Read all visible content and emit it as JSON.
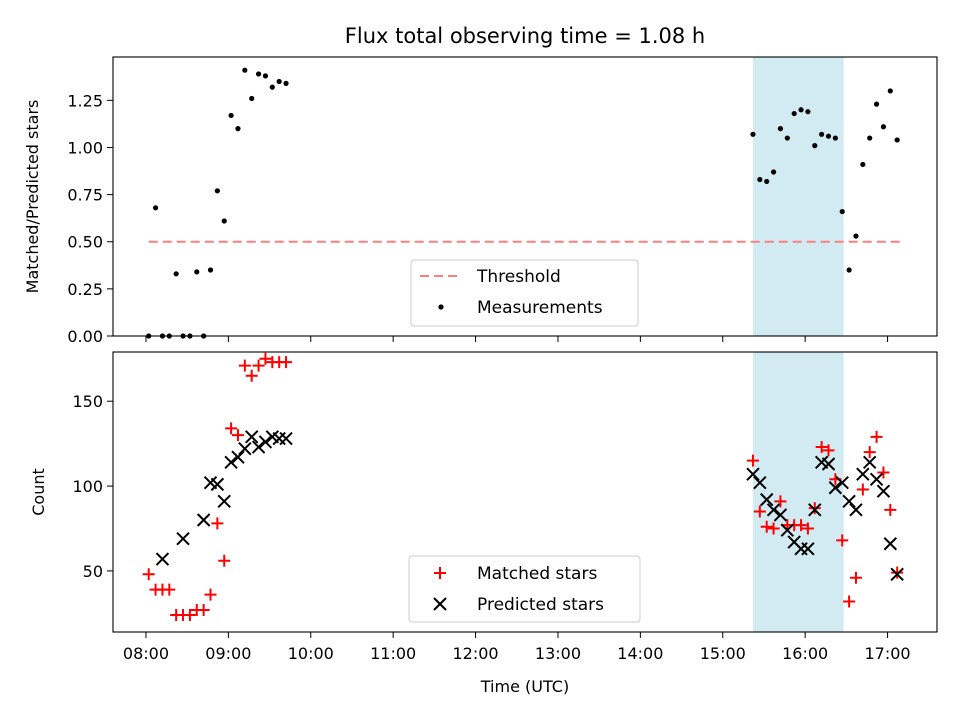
{
  "title": "Flux total observing time = 1.08 h",
  "colors": {
    "threshold": "#ff7f7f",
    "measurement": "#000000",
    "matched": "#ff0000",
    "predicted": "#000000",
    "shade": "#add8e6"
  },
  "chart_data": [
    {
      "type": "scatter",
      "ylabel": "Matched/Predicted stars",
      "xlim": [
        "07:36",
        "17:36"
      ],
      "ylim": [
        0,
        1.48
      ],
      "yticks": [
        0.0,
        0.25,
        0.5,
        0.75,
        1.0,
        1.25
      ],
      "ytick_labels": [
        "0.00",
        "0.25",
        "0.50",
        "0.75",
        "1.00",
        "1.25"
      ],
      "shaded_span": [
        "15:22",
        "16:28"
      ],
      "threshold": {
        "name": "Threshold",
        "y": 0.5,
        "x": [
          "08:02",
          "17:10"
        ]
      },
      "series": [
        {
          "name": "Measurements",
          "x": [
            "08:02",
            "08:07",
            "08:12",
            "08:17",
            "08:22",
            "08:27",
            "08:32",
            "08:37",
            "08:42",
            "08:47",
            "08:52",
            "08:57",
            "09:02",
            "09:07",
            "09:12",
            "09:17",
            "09:22",
            "09:27",
            "09:32",
            "09:37",
            "09:42",
            "15:22",
            "15:27",
            "15:32",
            "15:37",
            "15:42",
            "15:47",
            "15:52",
            "15:57",
            "16:02",
            "16:07",
            "16:12",
            "16:17",
            "16:22",
            "16:27",
            "16:32",
            "16:37",
            "16:42",
            "16:47",
            "16:52",
            "16:57",
            "17:02",
            "17:07"
          ],
          "y": [
            0.0,
            0.68,
            0.0,
            0.0,
            0.33,
            0.0,
            0.0,
            0.34,
            0.0,
            0.35,
            0.77,
            0.61,
            1.17,
            1.1,
            1.41,
            1.26,
            1.39,
            1.38,
            1.32,
            1.35,
            1.34,
            1.07,
            0.83,
            0.82,
            0.87,
            1.1,
            1.05,
            1.18,
            1.2,
            1.19,
            1.01,
            1.07,
            1.06,
            1.05,
            0.66,
            0.35,
            0.53,
            0.91,
            1.05,
            1.23,
            1.11,
            1.3,
            1.04
          ]
        }
      ],
      "legend": {
        "location": "lower center",
        "entries": [
          "Threshold",
          "Measurements"
        ]
      }
    },
    {
      "type": "scatter",
      "xlabel": "Time (UTC)",
      "ylabel": "Count",
      "xlim": [
        "07:36",
        "17:36"
      ],
      "ylim": [
        14,
        179
      ],
      "yticks": [
        50,
        100,
        150
      ],
      "xticks": [
        "08:00",
        "09:00",
        "10:00",
        "11:00",
        "12:00",
        "13:00",
        "14:00",
        "15:00",
        "16:00",
        "17:00"
      ],
      "shaded_span": [
        "15:22",
        "16:28"
      ],
      "series": [
        {
          "name": "Matched stars",
          "marker": "+",
          "x": [
            "08:02",
            "08:07",
            "08:12",
            "08:17",
            "08:22",
            "08:27",
            "08:32",
            "08:37",
            "08:42",
            "08:47",
            "08:52",
            "08:57",
            "09:02",
            "09:07",
            "09:12",
            "09:17",
            "09:22",
            "09:27",
            "09:32",
            "09:37",
            "09:42",
            "15:22",
            "15:27",
            "15:32",
            "15:37",
            "15:42",
            "15:47",
            "15:52",
            "15:57",
            "16:02",
            "16:07",
            "16:12",
            "16:17",
            "16:22",
            "16:27",
            "16:32",
            "16:37",
            "16:42",
            "16:47",
            "16:52",
            "16:57",
            "17:02",
            "17:07"
          ],
          "y": [
            48,
            39,
            39,
            39,
            24,
            24,
            24,
            27,
            27,
            36,
            78,
            56,
            134,
            130,
            171,
            165,
            171,
            175,
            173,
            173,
            173,
            115,
            85,
            76,
            75,
            91,
            77,
            77,
            77,
            75,
            87,
            123,
            121,
            104,
            68,
            32,
            46,
            98,
            120,
            129,
            108,
            86,
            49
          ]
        },
        {
          "name": "Predicted stars",
          "marker": "x",
          "x": [
            "08:12",
            "08:27",
            "08:42",
            "08:47",
            "08:52",
            "08:57",
            "09:02",
            "09:07",
            "09:12",
            "09:17",
            "09:22",
            "09:27",
            "09:32",
            "09:37",
            "09:42",
            "15:22",
            "15:27",
            "15:32",
            "15:37",
            "15:42",
            "15:47",
            "15:52",
            "15:57",
            "16:02",
            "16:07",
            "16:12",
            "16:17",
            "16:22",
            "16:27",
            "16:32",
            "16:37",
            "16:42",
            "16:47",
            "16:52",
            "16:57",
            "17:02",
            "17:07"
          ],
          "y": [
            57,
            69,
            80,
            102,
            101,
            91,
            114,
            117,
            122,
            129,
            123,
            126,
            129,
            128,
            128,
            107,
            102,
            92,
            86,
            83,
            74,
            67,
            63,
            63,
            86,
            114,
            113,
            99,
            102,
            91,
            86,
            107,
            114,
            104,
            97,
            66,
            48
          ]
        }
      ],
      "legend": {
        "location": "lower center",
        "entries": [
          "Matched stars",
          "Predicted stars"
        ]
      }
    }
  ]
}
